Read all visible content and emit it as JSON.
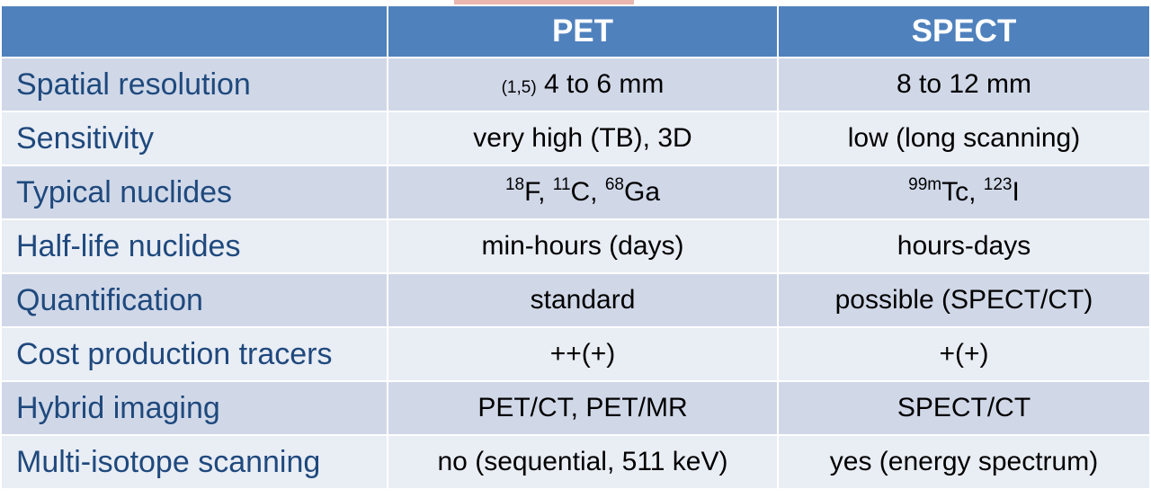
{
  "header": {
    "col1": "",
    "col2": "PET",
    "col3": "SPECT"
  },
  "rows": [
    {
      "label": "Spatial resolution",
      "pet_ref": "(1,5)",
      "pet": " 4 to 6 mm",
      "spect": "8 to 12 mm"
    },
    {
      "label": "Sensitivity",
      "pet": "very high (TB), 3D",
      "spect": "low (long scanning)"
    },
    {
      "label": "Typical nuclides",
      "pet_parts": {
        "s1": "18",
        "t1": "F, ",
        "s2": "11",
        "t2": "C, ",
        "s3": "68",
        "t3": "Ga"
      },
      "spect_parts": {
        "s1": "99m",
        "t1": "Tc, ",
        "s2": "123",
        "t2": "I"
      }
    },
    {
      "label": "Half-life nuclides",
      "pet": "min-hours (days)",
      "spect": "hours-days"
    },
    {
      "label": "Quantification",
      "pet": "standard",
      "spect": "possible (SPECT/CT)"
    },
    {
      "label": "Cost production tracers",
      "pet": "++(+)",
      "spect": "+(+)"
    },
    {
      "label": "Hybrid imaging",
      "pet": "PET/CT, PET/MR",
      "spect": "SPECT/CT"
    },
    {
      "label": "Multi-isotope scanning",
      "pet": "no (sequential, 511 keV)",
      "spect": "yes (energy spectrum)"
    }
  ],
  "colors": {
    "header_bg": "#4f81bd",
    "row_odd": "#d0d8e8",
    "row_even": "#e9edf4",
    "label_text": "#1f497d"
  }
}
